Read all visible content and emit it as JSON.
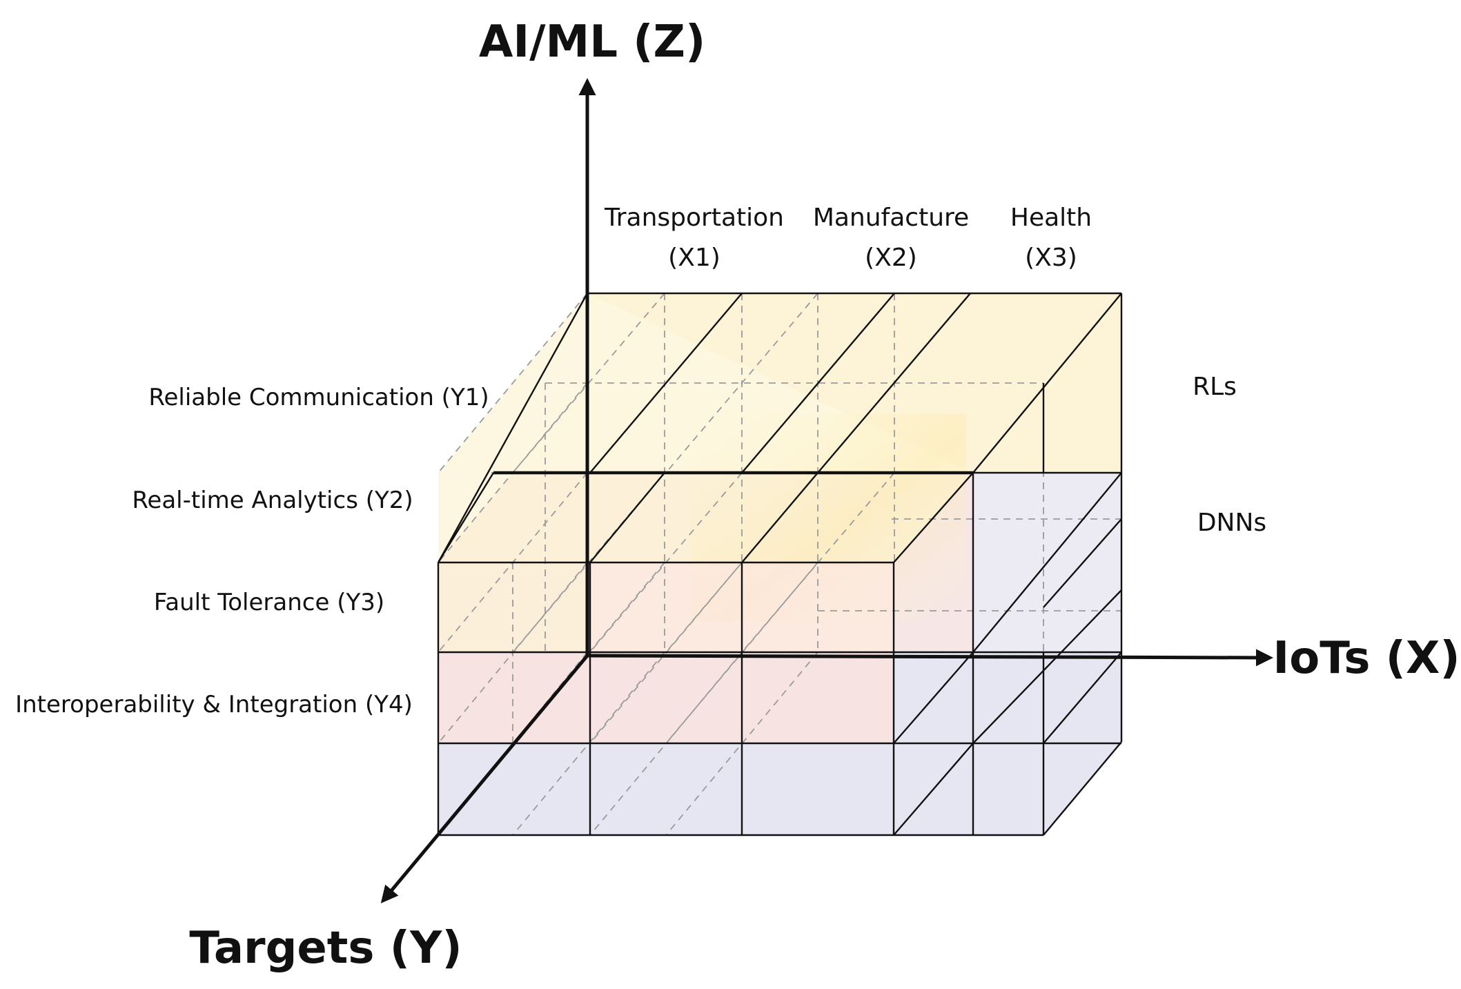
{
  "axes": {
    "z_title": "AI/ML (Z)",
    "x_title": "IoTs (X)",
    "y_title": "Targets (Y)"
  },
  "columns": [
    {
      "name": "Transportation",
      "code": "(X1)"
    },
    {
      "name": "Manufacture",
      "code": "(X2)"
    },
    {
      "name": "Health",
      "code": "(X3)"
    }
  ],
  "rows": [
    "Reliable Communication (Y1)",
    "Real-time Analytics (Y2)",
    "Fault Tolerance (Y3)",
    "Interoperability & Integration (Y4)"
  ],
  "layers": [
    "RLs",
    "DNNs"
  ],
  "colors": {
    "top_layer": "#fdf6dc",
    "upper_mid": "#fcefd8",
    "lower_mid": "#f8e2e2",
    "bottom_layer": "#e6e6f2",
    "lines": "#111111",
    "hidden_lines": "#9a9a9a"
  }
}
